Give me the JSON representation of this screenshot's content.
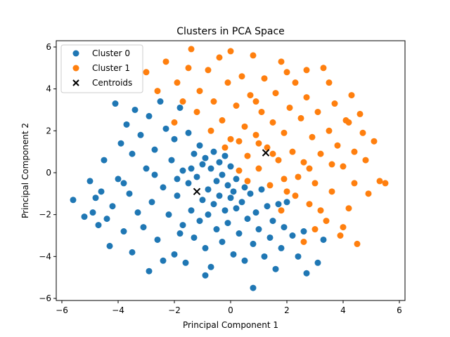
{
  "chart_data": {
    "type": "scatter",
    "title": "Clusters in PCA Space",
    "xlabel": "Principal Component 1",
    "ylabel": "Principal Component 2",
    "xlim": [
      -6.2,
      6.2
    ],
    "ylim": [
      -6.1,
      6.3
    ],
    "xticks": [
      -6,
      -4,
      -2,
      0,
      2,
      4,
      6
    ],
    "yticks": [
      -6,
      -4,
      -2,
      0,
      2,
      4,
      6
    ],
    "grid": false,
    "legend_position": "top-left",
    "series": [
      {
        "name": "Cluster 0",
        "color": "#1f77b4",
        "marker": "circle",
        "points": [
          [
            -5.6,
            -1.3
          ],
          [
            -5.2,
            -2.1
          ],
          [
            -5.0,
            -0.4
          ],
          [
            -4.9,
            -1.9
          ],
          [
            -4.8,
            -1.2
          ],
          [
            -4.7,
            -2.5
          ],
          [
            -4.6,
            -0.9
          ],
          [
            -4.5,
            0.6
          ],
          [
            -4.4,
            -2.2
          ],
          [
            -4.3,
            -3.5
          ],
          [
            -4.2,
            -1.6
          ],
          [
            -4.1,
            3.3
          ],
          [
            -4.0,
            -0.3
          ],
          [
            -3.9,
            1.4
          ],
          [
            -3.8,
            -2.8
          ],
          [
            -3.7,
            2.3
          ],
          [
            -3.6,
            -1.0
          ],
          [
            -3.5,
            -3.8
          ],
          [
            -3.5,
            0.9
          ],
          [
            -3.4,
            3.0
          ],
          [
            -3.3,
            -1.9
          ],
          [
            -3.2,
            1.8
          ],
          [
            -3.1,
            -2.6
          ],
          [
            -3.0,
            0.2
          ],
          [
            -2.9,
            2.7
          ],
          [
            -2.9,
            -4.7
          ],
          [
            -2.8,
            -1.4
          ],
          [
            -2.7,
            1.1
          ],
          [
            -2.6,
            -3.2
          ],
          [
            -2.5,
            3.4
          ],
          [
            -2.4,
            -0.7
          ],
          [
            -2.3,
            2.1
          ],
          [
            -2.2,
            -2.0
          ],
          [
            -2.1,
            0.6
          ],
          [
            -2.0,
            -3.9
          ],
          [
            -2.0,
            1.6
          ],
          [
            -1.9,
            -1.1
          ],
          [
            -1.8,
            3.1
          ],
          [
            -1.7,
            -2.5
          ],
          [
            -1.7,
            0.1
          ],
          [
            -1.6,
            -4.3
          ],
          [
            -1.5,
            1.9
          ],
          [
            -1.5,
            -0.5
          ],
          [
            -1.4,
            -1.8
          ],
          [
            -1.3,
            0.9
          ],
          [
            -1.3,
            -3.1
          ],
          [
            -1.2,
            -0.2
          ],
          [
            -1.1,
            1.3
          ],
          [
            -1.1,
            -2.3
          ],
          [
            -1.0,
            0.4
          ],
          [
            -1.0,
            -1.3
          ],
          [
            -0.9,
            -3.6
          ],
          [
            -0.9,
            0.7
          ],
          [
            -0.8,
            -0.8
          ],
          [
            -0.8,
            -2.0
          ],
          [
            -0.7,
            0.2
          ],
          [
            -0.7,
            -4.5
          ],
          [
            -0.6,
            -1.5
          ],
          [
            -0.6,
            1.0
          ],
          [
            -0.5,
            -0.4
          ],
          [
            -0.5,
            -2.7
          ],
          [
            -0.4,
            0.5
          ],
          [
            -0.4,
            -1.1
          ],
          [
            -0.3,
            -3.3
          ],
          [
            -0.3,
            -0.1
          ],
          [
            -0.2,
            -1.8
          ],
          [
            -0.2,
            0.8
          ],
          [
            -0.1,
            -0.6
          ],
          [
            -0.1,
            -2.4
          ],
          [
            0.0,
            -1.2
          ],
          [
            0.0,
            0.3
          ],
          [
            0.1,
            -3.9
          ],
          [
            0.1,
            -0.9
          ],
          [
            0.2,
            -1.7
          ],
          [
            0.2,
            -0.3
          ],
          [
            0.3,
            -2.9
          ],
          [
            0.4,
            -1.4
          ],
          [
            0.5,
            -0.7
          ],
          [
            0.5,
            -4.2
          ],
          [
            0.6,
            -2.2
          ],
          [
            0.7,
            -1.0
          ],
          [
            0.8,
            -3.4
          ],
          [
            0.8,
            -5.5
          ],
          [
            0.9,
            -1.9
          ],
          [
            1.0,
            -2.7
          ],
          [
            1.1,
            -0.8
          ],
          [
            1.2,
            -4.0
          ],
          [
            1.3,
            -1.6
          ],
          [
            1.4,
            -3.1
          ],
          [
            1.5,
            -2.3
          ],
          [
            1.6,
            -4.6
          ],
          [
            1.7,
            -1.5
          ],
          [
            1.8,
            -3.6
          ],
          [
            1.9,
            -2.6
          ],
          [
            2.0,
            -1.4
          ],
          [
            2.2,
            -3.0
          ],
          [
            2.4,
            -4.0
          ],
          [
            2.6,
            -2.8
          ],
          [
            2.7,
            -4.8
          ],
          [
            3.1,
            -4.3
          ],
          [
            3.3,
            -3.2
          ],
          [
            -3.8,
            -0.5
          ],
          [
            -2.7,
            -0.1
          ],
          [
            -1.9,
            -0.3
          ],
          [
            -1.4,
            0.2
          ],
          [
            -1.8,
            -2.9
          ],
          [
            -2.4,
            -4.2
          ],
          [
            -0.9,
            -4.9
          ]
        ]
      },
      {
        "name": "Cluster 1",
        "color": "#ff7f0e",
        "marker": "circle",
        "points": [
          [
            -3.0,
            4.8
          ],
          [
            -2.3,
            5.3
          ],
          [
            -1.9,
            4.3
          ],
          [
            -1.5,
            5.0
          ],
          [
            -1.4,
            5.9
          ],
          [
            -1.1,
            3.9
          ],
          [
            -0.8,
            4.9
          ],
          [
            -0.6,
            3.4
          ],
          [
            -0.4,
            5.5
          ],
          [
            -0.3,
            2.5
          ],
          [
            -0.1,
            4.3
          ],
          [
            0.0,
            5.8
          ],
          [
            0.2,
            3.2
          ],
          [
            0.3,
            1.5
          ],
          [
            0.4,
            4.6
          ],
          [
            0.5,
            2.2
          ],
          [
            0.6,
            0.8
          ],
          [
            0.7,
            3.7
          ],
          [
            0.8,
            5.6
          ],
          [
            0.9,
            1.8
          ],
          [
            1.0,
            0.2
          ],
          [
            1.1,
            2.9
          ],
          [
            1.2,
            4.5
          ],
          [
            1.3,
            1.2
          ],
          [
            1.4,
            -0.6
          ],
          [
            1.5,
            2.4
          ],
          [
            1.6,
            3.8
          ],
          [
            1.7,
            0.6
          ],
          [
            1.8,
            5.3
          ],
          [
            1.9,
            1.9
          ],
          [
            2.0,
            -0.9
          ],
          [
            2.1,
            3.1
          ],
          [
            2.2,
            1.0
          ],
          [
            2.3,
            4.3
          ],
          [
            2.4,
            -0.2
          ],
          [
            2.5,
            2.6
          ],
          [
            2.6,
            0.5
          ],
          [
            2.7,
            3.6
          ],
          [
            2.8,
            -1.5
          ],
          [
            2.9,
            1.7
          ],
          [
            3.0,
            -0.5
          ],
          [
            3.1,
            2.9
          ],
          [
            3.2,
            0.9
          ],
          [
            3.3,
            5.0
          ],
          [
            3.4,
            -2.3
          ],
          [
            3.5,
            2.0
          ],
          [
            3.6,
            -0.9
          ],
          [
            3.7,
            3.3
          ],
          [
            3.8,
            1.3
          ],
          [
            3.9,
            -3.0
          ],
          [
            4.0,
            0.3
          ],
          [
            4.1,
            2.5
          ],
          [
            4.2,
            -1.7
          ],
          [
            4.3,
            3.7
          ],
          [
            4.4,
            1.0
          ],
          [
            4.5,
            -3.4
          ],
          [
            4.6,
            2.8
          ],
          [
            4.8,
            0.6
          ],
          [
            4.9,
            -1.0
          ],
          [
            5.1,
            1.5
          ],
          [
            5.3,
            -0.4
          ],
          [
            5.5,
            -0.5
          ],
          [
            -0.2,
            1.2
          ],
          [
            0.0,
            1.6
          ],
          [
            0.3,
            0.1
          ],
          [
            0.6,
            -0.4
          ],
          [
            1.0,
            1.4
          ],
          [
            1.5,
            0.9
          ],
          [
            1.9,
            -0.3
          ],
          [
            2.3,
            -1.1
          ],
          [
            2.8,
            0.2
          ],
          [
            3.2,
            -1.8
          ],
          [
            3.6,
            0.4
          ],
          [
            4.0,
            -2.6
          ],
          [
            4.4,
            -0.5
          ],
          [
            2.6,
            -3.3
          ],
          [
            3.0,
            -2.7
          ],
          [
            1.8,
            -1.8
          ],
          [
            -1.7,
            3.4
          ],
          [
            -2.6,
            3.9
          ],
          [
            -2.0,
            2.4
          ],
          [
            -1.2,
            2.9
          ],
          [
            -0.7,
            2.0
          ],
          [
            0.9,
            3.4
          ],
          [
            2.0,
            4.8
          ],
          [
            2.7,
            4.9
          ],
          [
            3.5,
            4.3
          ],
          [
            4.2,
            2.4
          ],
          [
            4.7,
            1.9
          ]
        ]
      },
      {
        "name": "Centroids",
        "color": "#000000",
        "marker": "x",
        "points": [
          [
            -1.2,
            -0.9
          ],
          [
            1.25,
            0.95
          ]
        ]
      }
    ]
  }
}
